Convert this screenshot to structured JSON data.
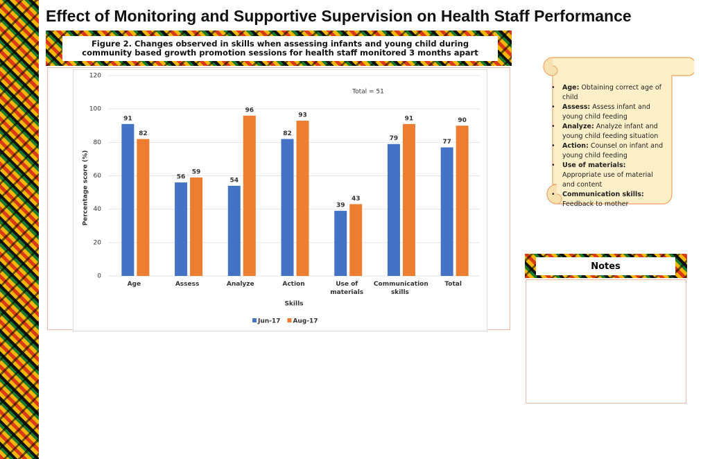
{
  "page_title": "Effect of Monitoring and Supportive Supervision on Health Staff Performance",
  "figure_caption": "Figure 2. Changes observed in skills when assessing infants and young child during community based growth promotion sessions for health staff monitored 3 months apart",
  "chart_data": {
    "type": "bar",
    "categories": [
      "Age",
      "Assess",
      "Analyze",
      "Action",
      "Use of materials",
      "Communication skills",
      "Total"
    ],
    "series": [
      {
        "name": "Jun-17",
        "color": "#4472c4",
        "values": [
          91,
          56,
          54,
          82,
          39,
          79,
          77
        ]
      },
      {
        "name": "Aug-17",
        "color": "#ed7d31",
        "values": [
          82,
          59,
          96,
          93,
          43,
          91,
          90
        ]
      }
    ],
    "y_label": "Percentage score (%)",
    "x_label": "Skills",
    "annotation": "Total = 51",
    "ylim": [
      0,
      120
    ],
    "yticks": [
      0,
      20,
      40,
      60,
      80,
      100,
      120
    ],
    "grid": true,
    "legend": "bottom"
  },
  "definitions": [
    {
      "label": "Age:",
      "text": "Obtaining correct age of child"
    },
    {
      "label": "Assess:",
      "text": "Assess infant and young child feeding"
    },
    {
      "label": "Analyze:",
      "text": "Analyze infant and young child feeding situation"
    },
    {
      "label": "Action:",
      "text": "Counsel on infant and young child feeding"
    },
    {
      "label": "Use of materials:",
      "text": "Appropriate use of material and content"
    },
    {
      "label": "Communication skills:",
      "text": "Feedback to mother"
    }
  ],
  "notes": {
    "title": "Notes"
  }
}
